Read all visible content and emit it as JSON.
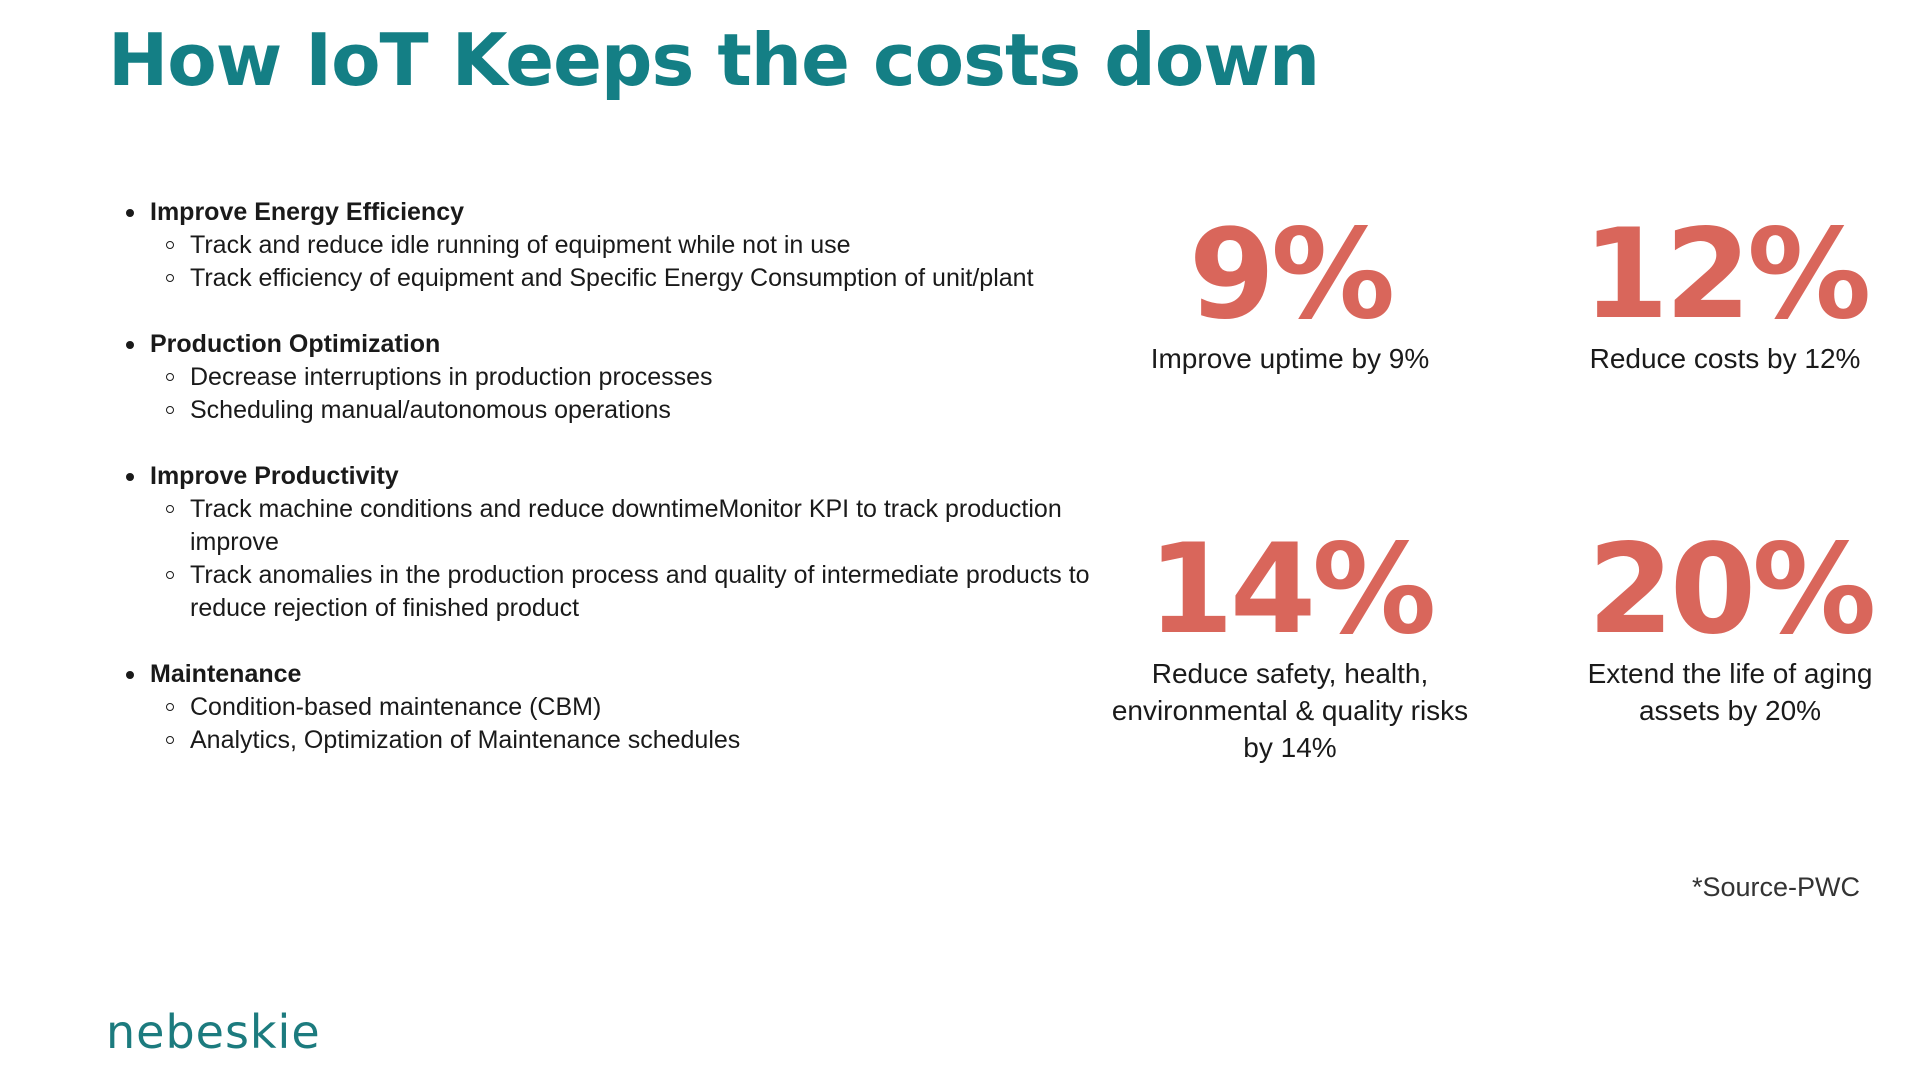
{
  "title": "How IoT Keeps the costs down",
  "sections": [
    {
      "heading": "Improve Energy Efficiency",
      "items": [
        "Track and reduce idle running of equipment while not in use",
        "Track efficiency of equipment and Specific Energy Consumption of unit/plant"
      ]
    },
    {
      "heading": "Production Optimization",
      "items": [
        "Decrease interruptions in production processes",
        "Scheduling manual/autonomous operations"
      ]
    },
    {
      "heading": "Improve Productivity",
      "items": [
        "Track machine conditions and reduce downtimeMonitor KPI to track production improve",
        "Track anomalies in the production process and quality of intermediate products to reduce rejection of finished product"
      ]
    },
    {
      "heading": "Maintenance",
      "items": [
        "Condition-based maintenance (CBM)",
        "Analytics, Optimization of Maintenance schedules"
      ]
    }
  ],
  "stats": [
    {
      "value": "9%",
      "label": "Improve uptime by 9%"
    },
    {
      "value": "12%",
      "label": "Reduce costs by 12%"
    },
    {
      "value": "14%",
      "label": "Reduce safety, health, environmental & quality risks by 14%"
    },
    {
      "value": "20%",
      "label": "Extend the life of aging assets by 20%"
    }
  ],
  "source": "*Source-PWC",
  "logo": "nebeskie",
  "colors": {
    "title": "#147f85",
    "stat": "#d9665b",
    "logo": "#1c7b7e"
  }
}
